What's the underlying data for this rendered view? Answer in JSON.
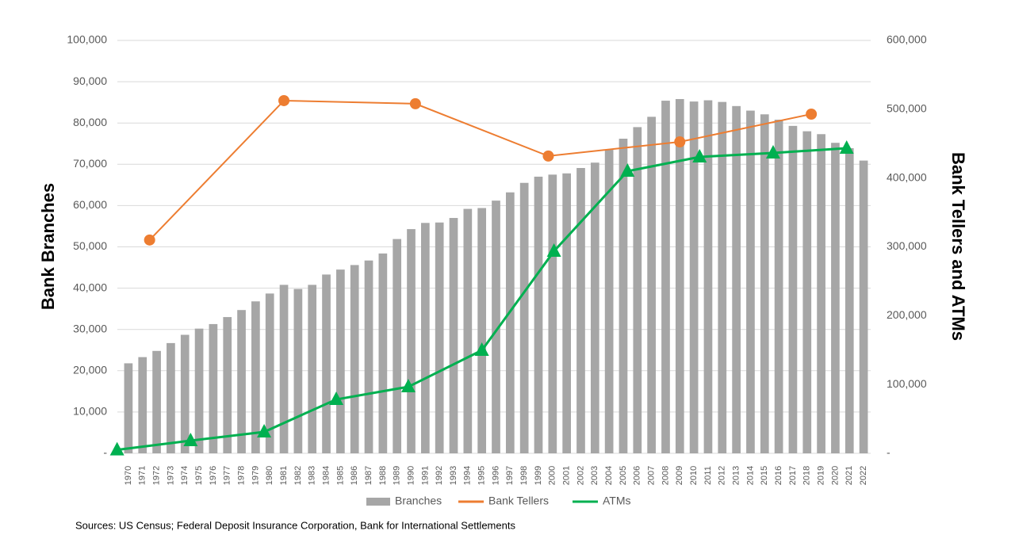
{
  "chart_data": {
    "type": "combo",
    "y_label": "Bank Branches",
    "y2_label": "Bank Tellers and ATMs",
    "source": "Sources: US Census; Federal Deposit Insurance Corporation, Bank for International Settlements",
    "categories": [
      "1970",
      "1971",
      "1972",
      "1973",
      "1974",
      "1975",
      "1976",
      "1977",
      "1978",
      "1979",
      "1980",
      "1981",
      "1982",
      "1983",
      "1984",
      "1985",
      "1986",
      "1987",
      "1988",
      "1989",
      "1990",
      "1991",
      "1992",
      "1993",
      "1994",
      "1995",
      "1996",
      "1997",
      "1998",
      "1999",
      "2000",
      "2001",
      "2002",
      "2003",
      "2004",
      "2005",
      "2006",
      "2007",
      "2008",
      "2009",
      "2010",
      "2011",
      "2012",
      "2013",
      "2014",
      "2015",
      "2016",
      "2017",
      "2018",
      "2019",
      "2020",
      "2021",
      "2022"
    ],
    "series": [
      {
        "name": "Branches",
        "type": "bar",
        "color": "#a6a6a6",
        "values": [
          21800,
          23300,
          24800,
          26700,
          28700,
          30200,
          31300,
          33000,
          34700,
          36800,
          38700,
          40800,
          39800,
          40800,
          43300,
          44500,
          45600,
          46700,
          48400,
          51900,
          54300,
          55800,
          55900,
          57000,
          59200,
          59400,
          61200,
          63200,
          65500,
          67000,
          67500,
          67800,
          69100,
          70400,
          73500,
          76200,
          79000,
          81500,
          85400,
          85800,
          85200,
          85500,
          85100,
          84100,
          83000,
          82100,
          80800,
          79300,
          78000,
          77300,
          75200,
          73900,
          70900
        ]
      },
      {
        "name": "Bank Tellers",
        "type": "line",
        "marker": "circle",
        "color": "#ed7d31",
        "axis": "y2",
        "x": [
          1971.5,
          1981,
          1990.3,
          1999.7,
          2009,
          2018.3
        ],
        "values": [
          310000,
          512500,
          508000,
          432000,
          452600,
          492900
        ]
      },
      {
        "name": "ATMs",
        "type": "line",
        "marker": "triangle",
        "color": "#00b050",
        "axis": "y2",
        "x": [
          1969.2,
          1974.4,
          1979.6,
          1984.7,
          1989.8,
          1995,
          2000.1,
          2005.3,
          2010.4,
          2015.6,
          2020.8
        ],
        "values": [
          5000,
          18400,
          31100,
          78300,
          96700,
          149700,
          293700,
          410000,
          430700,
          436500,
          443400
        ]
      }
    ],
    "ylim": [
      0,
      100000
    ],
    "yticks": [
      {
        "value": 0,
        "label": "-"
      },
      {
        "value": 10000,
        "label": "10,000"
      },
      {
        "value": 20000,
        "label": "20,000"
      },
      {
        "value": 30000,
        "label": "30,000"
      },
      {
        "value": 40000,
        "label": "40,000"
      },
      {
        "value": 50000,
        "label": "50,000"
      },
      {
        "value": 60000,
        "label": "60,000"
      },
      {
        "value": 70000,
        "label": "70,000"
      },
      {
        "value": 80000,
        "label": "80,000"
      },
      {
        "value": 90000,
        "label": "90,000"
      },
      {
        "value": 100000,
        "label": "100,000"
      }
    ],
    "y2lim": [
      0,
      600000
    ],
    "y2ticks": [
      {
        "value": 0,
        "label": "-"
      },
      {
        "value": 100000,
        "label": "100,000"
      },
      {
        "value": 200000,
        "label": "200,000"
      },
      {
        "value": 300000,
        "label": "300,000"
      },
      {
        "value": 400000,
        "label": "400,000"
      },
      {
        "value": 500000,
        "label": "500,000"
      },
      {
        "value": 600000,
        "label": "600,000"
      }
    ],
    "grid": true,
    "legend": "bottom"
  }
}
